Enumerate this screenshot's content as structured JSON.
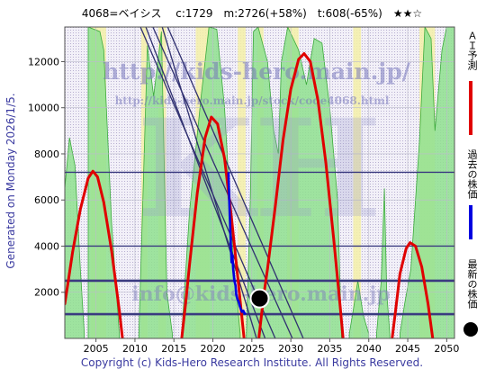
{
  "title": "4068=ベイシス　 c:1729　m:2726(+58%)　t:608(-65%)　★★☆",
  "side_label": "Generated on Monday 2026/1/5.",
  "copyright": "Copyright (c) Kids-Hero Research Institute. All Rights Reserved.",
  "watermark": {
    "url1": "http://kids-hero.main.jp/",
    "url2": "http://kids-hero.main.jp/stock/code4068.html",
    "big": "KH",
    "mail": "info@kids-hero.main.jp"
  },
  "legend": {
    "ai_forecast": "ＡＩ予測",
    "past_price": "過去の株価",
    "latest_price": "最新の株価"
  },
  "colors": {
    "forecast": "#e00000",
    "past": "#0000e0",
    "latest": "#000000",
    "trend": "#303070",
    "green_fill": "#8fe08f",
    "yellow_fill": "#f5f0a8",
    "grid": "#bbbbcc"
  },
  "chart_data": {
    "type": "line",
    "xlim": [
      2001,
      2051
    ],
    "ylim": [
      0,
      13500
    ],
    "x_ticks": [
      2005,
      2010,
      2015,
      2020,
      2025,
      2030,
      2035,
      2040,
      2045,
      2050
    ],
    "y_ticks": [
      2000,
      4000,
      6000,
      8000,
      10000,
      12000
    ],
    "horizontal_levels": [
      1050,
      2500,
      4000,
      7200
    ],
    "series": [
      {
        "name": "ＡＩ予測",
        "segments": [
          [
            [
              2001.0,
              1500
            ],
            [
              2001.5,
              2600
            ],
            [
              2002,
              3750
            ],
            [
              2003,
              5600
            ],
            [
              2004,
              6950
            ],
            [
              2004.6,
              7250
            ],
            [
              2005.2,
              7000
            ],
            [
              2006,
              5900
            ],
            [
              2007,
              3800
            ],
            [
              2008,
              1200
            ],
            [
              2008.4,
              0
            ]
          ],
          [
            [
              2016,
              0
            ],
            [
              2016.5,
              1500
            ],
            [
              2017,
              3200
            ],
            [
              2018,
              6300
            ],
            [
              2019,
              8700
            ],
            [
              2019.8,
              9600
            ],
            [
              2020.6,
              9300
            ],
            [
              2021.5,
              7800
            ],
            [
              2022.4,
              5200
            ],
            [
              2023.2,
              2600
            ],
            [
              2024,
              0
            ]
          ],
          [
            [
              2025.9,
              0
            ],
            [
              2026.5,
              1800
            ],
            [
              2027,
              3000
            ],
            [
              2028,
              5700
            ],
            [
              2029,
              8600
            ],
            [
              2030,
              10800
            ],
            [
              2031,
              12100
            ],
            [
              2031.7,
              12350
            ],
            [
              2032.5,
              12000
            ],
            [
              2033.5,
              10300
            ],
            [
              2034.5,
              7600
            ],
            [
              2035.5,
              4300
            ],
            [
              2036.3,
              1500
            ],
            [
              2036.7,
              0
            ]
          ],
          [
            [
              2043,
              0
            ],
            [
              2043.4,
              1100
            ],
            [
              2044,
              2800
            ],
            [
              2044.8,
              3900
            ],
            [
              2045.3,
              4150
            ],
            [
              2046,
              4000
            ],
            [
              2046.8,
              3100
            ],
            [
              2047.6,
              1500
            ],
            [
              2048.2,
              0
            ]
          ]
        ]
      },
      {
        "name": "過去の株価",
        "points": [
          [
            2022.0,
            7200
          ],
          [
            2022.1,
            6000
          ],
          [
            2022.2,
            5000
          ],
          [
            2022.3,
            4000
          ],
          [
            2022.4,
            3300
          ],
          [
            2022.5,
            3600
          ],
          [
            2022.6,
            3000
          ],
          [
            2022.75,
            2500
          ],
          [
            2022.9,
            2300
          ],
          [
            2023.0,
            1900
          ],
          [
            2023.15,
            1700
          ],
          [
            2023.3,
            1600
          ],
          [
            2023.45,
            1400
          ],
          [
            2023.6,
            1250
          ],
          [
            2023.75,
            1150
          ],
          [
            2023.9,
            1200
          ],
          [
            2024.05,
            1100
          ],
          [
            2024.2,
            1050
          ]
        ]
      }
    ],
    "latest_point": {
      "x": 2026.0,
      "y": 1729
    },
    "trend_lines": [
      [
        [
          2010.7,
          13500
        ],
        [
          2028.0,
          0
        ]
      ],
      [
        [
          2011.4,
          13500
        ],
        [
          2026.7,
          0
        ]
      ],
      [
        [
          2012.3,
          13500
        ],
        [
          2030.2,
          0
        ]
      ],
      [
        [
          2014.2,
          13500
        ],
        [
          2031.6,
          0
        ]
      ],
      [
        [
          2013.5,
          13500
        ],
        [
          2025.6,
          0
        ]
      ]
    ],
    "green_bands": [
      [
        [
          2001,
          6500
        ],
        [
          2001.6,
          8700
        ],
        [
          2002.3,
          7500
        ],
        [
          2003,
          3000
        ],
        [
          2003.5,
          200
        ]
      ],
      [
        [
          2004,
          13500
        ],
        [
          2005.5,
          13300
        ],
        [
          2006,
          12500
        ],
        [
          2007,
          5000
        ],
        [
          2008,
          200
        ]
      ],
      [
        [
          2010.5,
          200
        ],
        [
          2011.6,
          12700
        ],
        [
          2012.4,
          10500
        ],
        [
          2013.4,
          13300
        ],
        [
          2014.1,
          2000
        ],
        [
          2014.8,
          200
        ]
      ],
      [
        [
          2016,
          200
        ],
        [
          2017,
          5500
        ],
        [
          2018.5,
          10500
        ],
        [
          2019.5,
          13500
        ],
        [
          2020.5,
          13400
        ],
        [
          2021.5,
          10000
        ],
        [
          2022.6,
          3500
        ],
        [
          2023.5,
          200
        ]
      ],
      [
        [
          2024.3,
          200
        ],
        [
          2024.8,
          6000
        ],
        [
          2025.2,
          13300
        ],
        [
          2025.8,
          13500
        ],
        [
          2027,
          12000
        ],
        [
          2027.8,
          9000
        ],
        [
          2028.4,
          8000
        ],
        [
          2028.8,
          12000
        ],
        [
          2029.6,
          13500
        ],
        [
          2031,
          12500
        ],
        [
          2032,
          11000
        ],
        [
          2033,
          13000
        ],
        [
          2034,
          12800
        ],
        [
          2035,
          10000
        ],
        [
          2036,
          6000
        ],
        [
          2036.5,
          200
        ]
      ],
      [
        [
          2037.5,
          200
        ],
        [
          2038,
          1200
        ],
        [
          2038.6,
          2500
        ],
        [
          2039.3,
          1000
        ],
        [
          2040,
          200
        ]
      ],
      [
        [
          2041,
          200
        ],
        [
          2041.6,
          2500
        ],
        [
          2042,
          6500
        ],
        [
          2042.3,
          2000
        ],
        [
          2042.7,
          200
        ]
      ],
      [
        [
          2044,
          200
        ],
        [
          2044.6,
          1500
        ],
        [
          2045.4,
          3000
        ],
        [
          2046.5,
          8500
        ],
        [
          2047.2,
          13500
        ],
        [
          2048,
          13000
        ],
        [
          2048.5,
          9000
        ],
        [
          2049.4,
          12500
        ],
        [
          2050,
          13500
        ],
        [
          2051,
          13500
        ],
        [
          2051,
          200
        ]
      ]
    ],
    "yellow_bands": [
      [
        2004.3,
        2006.3
      ],
      [
        2010.8,
        2011.6
      ],
      [
        2013.0,
        2014.0
      ],
      [
        2017.8,
        2019.6
      ],
      [
        2023.2,
        2024.2
      ],
      [
        2025.7,
        2026.5
      ],
      [
        2029.5,
        2031.0
      ],
      [
        2038.0,
        2039.0
      ],
      [
        2046.5,
        2048.5
      ]
    ]
  }
}
